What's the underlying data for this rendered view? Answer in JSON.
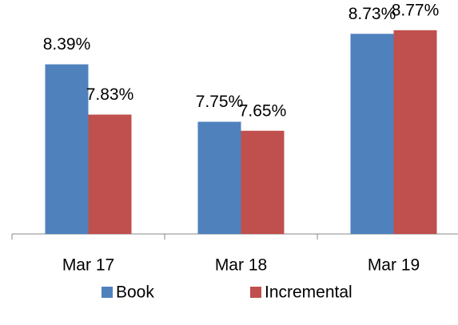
{
  "chart_data": {
    "type": "bar",
    "categories": [
      "Mar 17",
      "Mar 18",
      "Mar 19"
    ],
    "series": [
      {
        "name": "Book",
        "color": "#4f81bd",
        "values": [
          8.39,
          7.75,
          8.73
        ],
        "value_labels": [
          "8.39%",
          "7.75%",
          "8.73%"
        ]
      },
      {
        "name": "Incremental",
        "color": "#c0504d",
        "values": [
          7.83,
          7.65,
          8.77
        ],
        "value_labels": [
          "7.83%",
          "7.65%",
          "8.77%"
        ]
      }
    ],
    "ylim": [
      6.5,
      9.0
    ],
    "legend": "bottom"
  }
}
